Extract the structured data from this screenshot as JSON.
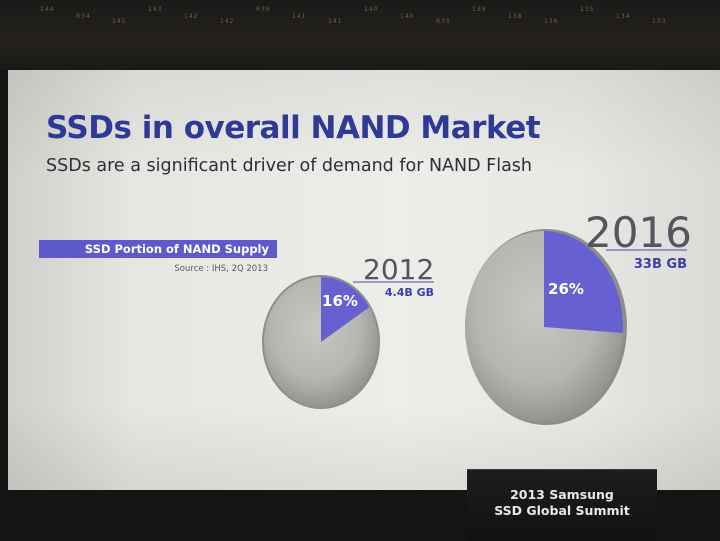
{
  "ceiling_labels": [
    "144",
    "R34",
    "145",
    "143",
    "142",
    "142",
    "R36",
    "141",
    "141",
    "140",
    "140",
    "R35",
    "139",
    "138",
    "136",
    "135",
    "134",
    "133"
  ],
  "slide": {
    "title": "SSDs in overall NAND Market",
    "subtitle": "SSDs are a significant driver of demand for NAND Flash",
    "legend_label": "SSD Portion of NAND Supply",
    "source": "Source : IHS, 2Q 2013"
  },
  "chart_data": [
    {
      "type": "pie",
      "title": "2012",
      "total_label": "4.4B GB",
      "slices": [
        {
          "name": "SSD",
          "value": 16,
          "label": "16%",
          "color": "#6660d0"
        },
        {
          "name": "Other",
          "value": 84,
          "color": "#b9b8b5"
        }
      ]
    },
    {
      "type": "pie",
      "title": "2016",
      "total_label": "33B GB",
      "slices": [
        {
          "name": "SSD",
          "value": 26,
          "label": "26%",
          "color": "#6660d0"
        },
        {
          "name": "Other",
          "value": 74,
          "color": "#b9b8b5"
        }
      ]
    }
  ],
  "podium": {
    "line1": "2013 Samsung",
    "line2": "SSD Global Summit"
  },
  "colors": {
    "title": "#2f3c9a",
    "accent": "#5f5acc",
    "slice": "#6660d0"
  }
}
